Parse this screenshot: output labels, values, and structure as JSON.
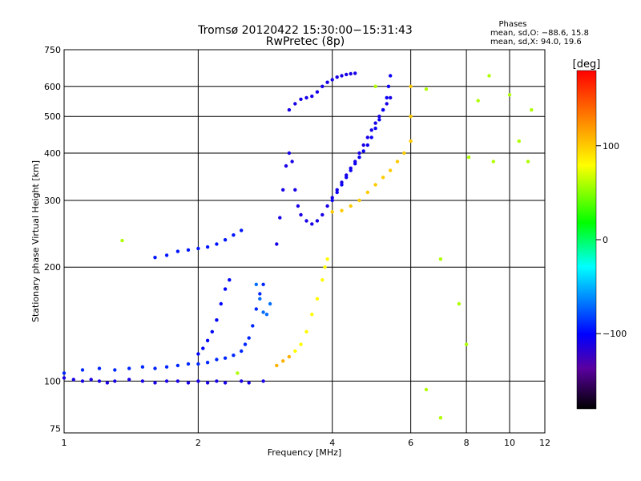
{
  "chart_data": {
    "type": "scatter",
    "title": "Tromsø 20120422 15:30:00−15:31:43",
    "subtitle": "RwPretec (8p)",
    "phases_box": {
      "heading": "Phases",
      "line1": "mean, sd,O: −88.6, 15.8",
      "line2": "mean, sd,X:  94.0, 19.6"
    },
    "xlabel": "Frequency [MHz]",
    "ylabel": "Stationary phase Virtual Height [km]",
    "xscale": "log",
    "yscale": "log",
    "xlim": [
      1,
      12
    ],
    "ylim": [
      73,
      750
    ],
    "xticks": [
      1,
      2,
      4,
      6,
      8,
      10,
      12
    ],
    "xtick_labels": [
      "1",
      "2",
      "4",
      "6",
      "8",
      "10",
      "12"
    ],
    "yticks": [
      75,
      100,
      200,
      300,
      400,
      500,
      600,
      750
    ],
    "ytick_labels": [
      "75",
      "100",
      "200",
      "300",
      "400",
      "500",
      "600",
      "750"
    ],
    "grid": true,
    "colorbar": {
      "label": "[deg]",
      "range": [
        -180,
        180
      ],
      "ticks": [
        100,
        0,
        -100
      ],
      "tick_labels": [
        "100",
        "0",
        "−100"
      ]
    },
    "series": [
      {
        "points": [
          [
            1.0,
            102
          ],
          [
            1.05,
            101
          ],
          [
            1.1,
            100
          ],
          [
            1.15,
            101
          ],
          [
            1.2,
            100
          ],
          [
            1.25,
            99
          ],
          [
            1.3,
            100
          ],
          [
            1.4,
            101
          ],
          [
            1.5,
            100
          ],
          [
            1.6,
            99
          ],
          [
            1.7,
            100
          ],
          [
            1.8,
            100
          ],
          [
            1.9,
            99
          ],
          [
            2.0,
            100
          ],
          [
            2.1,
            99
          ],
          [
            2.2,
            100
          ],
          [
            2.3,
            99
          ],
          [
            2.5,
            100
          ],
          [
            2.6,
            99
          ],
          [
            2.8,
            100
          ]
        ],
        "phase": -110
      },
      {
        "points": [
          [
            1.0,
            105
          ],
          [
            1.1,
            107
          ],
          [
            1.2,
            108
          ],
          [
            1.3,
            107
          ],
          [
            1.4,
            108
          ],
          [
            1.5,
            109
          ],
          [
            1.6,
            108
          ],
          [
            1.7,
            109
          ],
          [
            1.8,
            110
          ],
          [
            1.9,
            111
          ],
          [
            2.0,
            111
          ],
          [
            2.1,
            112
          ],
          [
            2.2,
            114
          ],
          [
            2.3,
            115
          ],
          [
            2.4,
            117
          ],
          [
            2.5,
            120
          ],
          [
            2.55,
            125
          ],
          [
            2.6,
            130
          ],
          [
            2.65,
            140
          ],
          [
            2.7,
            155
          ],
          [
            2.75,
            170
          ],
          [
            2.8,
            180
          ]
        ],
        "phase": -90
      },
      {
        "points": [
          [
            1.6,
            212
          ],
          [
            1.7,
            215
          ],
          [
            1.8,
            220
          ],
          [
            1.9,
            222
          ],
          [
            2.0,
            224
          ],
          [
            2.1,
            226
          ],
          [
            2.2,
            230
          ],
          [
            2.3,
            236
          ],
          [
            2.4,
            243
          ],
          [
            2.5,
            250
          ]
        ],
        "phase": -95
      },
      {
        "points": [
          [
            2.0,
            118
          ],
          [
            2.05,
            122
          ],
          [
            2.1,
            128
          ],
          [
            2.15,
            135
          ],
          [
            2.2,
            145
          ],
          [
            2.25,
            160
          ],
          [
            2.3,
            175
          ],
          [
            2.35,
            185
          ]
        ],
        "phase": -100
      },
      {
        "points": [
          [
            2.7,
            180
          ],
          [
            2.75,
            165
          ],
          [
            2.8,
            152
          ],
          [
            2.85,
            150
          ],
          [
            2.9,
            160
          ]
        ],
        "phase": -70
      },
      {
        "points": [
          [
            3.0,
            230
          ],
          [
            3.05,
            270
          ],
          [
            3.1,
            320
          ],
          [
            3.15,
            370
          ],
          [
            3.2,
            400
          ],
          [
            3.25,
            380
          ],
          [
            3.3,
            320
          ],
          [
            3.35,
            290
          ],
          [
            3.4,
            275
          ],
          [
            3.5,
            265
          ],
          [
            3.6,
            260
          ],
          [
            3.7,
            265
          ],
          [
            3.8,
            275
          ],
          [
            3.9,
            290
          ],
          [
            4.0,
            305
          ],
          [
            4.1,
            320
          ],
          [
            4.2,
            335
          ],
          [
            4.3,
            350
          ],
          [
            4.4,
            365
          ],
          [
            4.5,
            380
          ],
          [
            4.6,
            400
          ],
          [
            4.7,
            420
          ],
          [
            4.8,
            440
          ],
          [
            4.9,
            460
          ],
          [
            5.0,
            480
          ],
          [
            5.1,
            500
          ],
          [
            5.2,
            520
          ],
          [
            5.3,
            540
          ],
          [
            5.4,
            560
          ]
        ],
        "phase": -110
      },
      {
        "points": [
          [
            3.2,
            520
          ],
          [
            3.3,
            540
          ],
          [
            3.4,
            555
          ],
          [
            3.5,
            560
          ],
          [
            3.6,
            565
          ],
          [
            3.7,
            580
          ],
          [
            3.8,
            600
          ],
          [
            3.9,
            615
          ],
          [
            4.0,
            625
          ],
          [
            4.1,
            635
          ],
          [
            4.2,
            640
          ],
          [
            4.3,
            645
          ],
          [
            4.4,
            648
          ],
          [
            4.5,
            650
          ]
        ],
        "phase": -110
      },
      {
        "points": [
          [
            4.0,
            300
          ],
          [
            4.1,
            315
          ],
          [
            4.2,
            330
          ],
          [
            4.3,
            345
          ],
          [
            4.4,
            360
          ],
          [
            4.5,
            375
          ],
          [
            4.6,
            390
          ],
          [
            4.7,
            405
          ],
          [
            4.8,
            420
          ],
          [
            4.9,
            440
          ],
          [
            5.0,
            465
          ],
          [
            5.1,
            490
          ],
          [
            5.2,
            520
          ],
          [
            5.3,
            560
          ],
          [
            5.35,
            600
          ],
          [
            5.4,
            640
          ]
        ],
        "phase": -105
      },
      {
        "points": [
          [
            3.3,
            120
          ],
          [
            3.4,
            125
          ],
          [
            3.5,
            135
          ],
          [
            3.6,
            150
          ],
          [
            3.7,
            165
          ],
          [
            3.8,
            185
          ],
          [
            3.85,
            200
          ],
          [
            3.9,
            210
          ]
        ],
        "phase": 80
      },
      {
        "points": [
          [
            4.0,
            280
          ],
          [
            4.2,
            282
          ],
          [
            4.4,
            290
          ],
          [
            4.6,
            300
          ],
          [
            4.8,
            315
          ],
          [
            5.0,
            330
          ],
          [
            5.2,
            345
          ],
          [
            5.4,
            360
          ],
          [
            5.6,
            380
          ],
          [
            5.8,
            400
          ],
          [
            6.0,
            430
          ],
          [
            6.0,
            500
          ],
          [
            6.0,
            600
          ]
        ],
        "phase": 100
      },
      {
        "points": [
          [
            3.0,
            110
          ],
          [
            3.1,
            113
          ],
          [
            3.2,
            116
          ]
        ],
        "phase": 110
      },
      {
        "points": [
          [
            1.35,
            235
          ],
          [
            2.45,
            105
          ],
          [
            5.0,
            600
          ],
          [
            6.5,
            590
          ],
          [
            7.0,
            210
          ],
          [
            7.7,
            160
          ],
          [
            8.1,
            390
          ],
          [
            8.5,
            550
          ],
          [
            9.0,
            640
          ],
          [
            9.2,
            380
          ],
          [
            10.0,
            570
          ],
          [
            10.5,
            430
          ],
          [
            11.0,
            380
          ],
          [
            11.2,
            520
          ],
          [
            7.0,
            80
          ],
          [
            6.5,
            95
          ],
          [
            8.0,
            125
          ]
        ],
        "phase": 60
      }
    ]
  }
}
